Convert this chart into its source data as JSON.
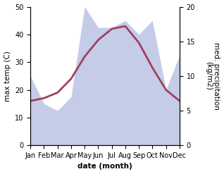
{
  "months": [
    "Jan",
    "Feb",
    "Mar",
    "Apr",
    "May",
    "Jun",
    "Jul",
    "Aug",
    "Sep",
    "Oct",
    "Nov",
    "Dec"
  ],
  "temperature": [
    16,
    17,
    19,
    24,
    32,
    38,
    42,
    43,
    37,
    28,
    20,
    16
  ],
  "precipitation": [
    10,
    6,
    5,
    7,
    20,
    17,
    17,
    18,
    16,
    18,
    8,
    13
  ],
  "temp_color": "#a04060",
  "precip_fill_color": "#c5cce8",
  "ylim_left": [
    0,
    50
  ],
  "ylim_right": [
    0,
    20
  ],
  "left_ticks": [
    0,
    10,
    20,
    30,
    40,
    50
  ],
  "right_ticks": [
    0,
    5,
    10,
    15,
    20
  ],
  "ylabel_left": "max temp (C)",
  "ylabel_right": "med. precipitation\n(kg/m2)",
  "xlabel": "date (month)",
  "label_fontsize": 7.5,
  "tick_fontsize": 7
}
